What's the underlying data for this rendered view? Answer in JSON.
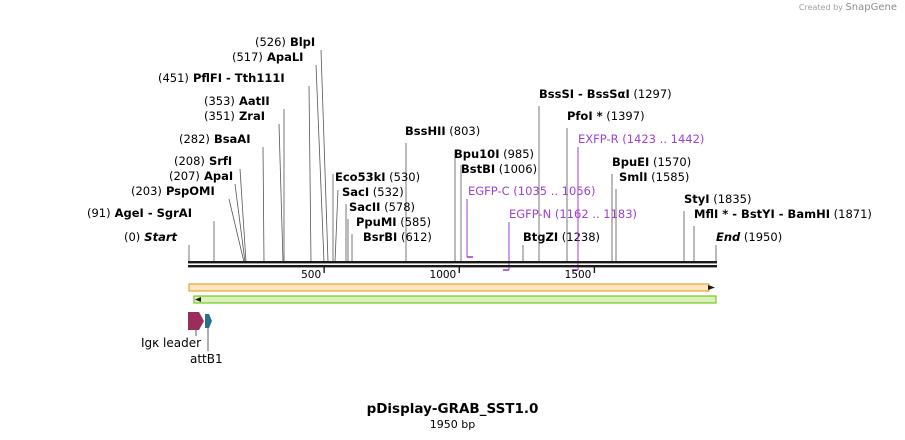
{
  "watermark": {
    "created_by": "Created by",
    "brand": "SnapGene"
  },
  "map": {
    "title": "pDisplay-GRAB_SST1.0",
    "length_label": "1950 bp",
    "length": 1950,
    "ticks": [
      {
        "pos": 500,
        "label": "500"
      },
      {
        "pos": 1000,
        "label": "1000"
      },
      {
        "pos": 1500,
        "label": "1500"
      }
    ]
  },
  "sites": [
    {
      "pos": "(526)",
      "name": "BlpI",
      "coord": 526
    },
    {
      "pos": "(517)",
      "name": "ApaLI",
      "coord": 517
    },
    {
      "pos": "(451)",
      "name": "PflFI",
      "suffix": "Tth111I",
      "coord": 451
    },
    {
      "pos": "(353)",
      "name": "AatII",
      "coord": 353
    },
    {
      "pos": "(351)",
      "name": "ZraI",
      "coord": 351
    },
    {
      "pos": "(282)",
      "name": "BsaAI",
      "coord": 282
    },
    {
      "pos": "(208)",
      "name": "SrfI",
      "coord": 208
    },
    {
      "pos": "(207)",
      "name": "ApaI",
      "coord": 207
    },
    {
      "pos": "(203)",
      "name": "PspOMI",
      "coord": 203
    },
    {
      "pos": "(91)",
      "name": "AgeI",
      "suffix": "SgrAI",
      "coord": 91
    },
    {
      "pos": "(0)",
      "name": "Start",
      "coord": 0
    },
    {
      "name": "BssHII",
      "pos": "(803)",
      "coord": 803
    },
    {
      "name": "Eco53kI",
      "pos": "(530)",
      "coord": 530
    },
    {
      "name": "SacI",
      "pos": "(532)",
      "coord": 532
    },
    {
      "name": "SacII",
      "pos": "(578)",
      "coord": 578
    },
    {
      "name": "PpuMI",
      "pos": "(585)",
      "coord": 585
    },
    {
      "name": "BsrBI",
      "pos": "(612)",
      "coord": 612
    },
    {
      "name": "Bpu10I",
      "pos": "(985)",
      "coord": 985
    },
    {
      "name": "BstBI",
      "pos": "(1006)",
      "coord": 1006
    },
    {
      "name": "BtgZI",
      "pos": "(1238)",
      "coord": 1238
    },
    {
      "name": "BssSI",
      "suffix": "BssSαI",
      "pos": "(1297)",
      "coord": 1297
    },
    {
      "name": "PfoI",
      "star": "*",
      "pos": "(1397)",
      "coord": 1397
    },
    {
      "name": "BpuEI",
      "pos": "(1570)",
      "coord": 1570
    },
    {
      "name": "SmlI",
      "pos": "(1585)",
      "coord": 1585
    },
    {
      "name": "StyI",
      "pos": "(1835)",
      "coord": 1835
    },
    {
      "name": "MflI",
      "star": "*",
      "suffix": "BstYI",
      "suffix2": "BamHI",
      "pos": "(1871)",
      "coord": 1871
    },
    {
      "name": "End",
      "pos": "(1950)",
      "coord": 1950
    }
  ],
  "primers": [
    {
      "name": "EXFP-R",
      "range": "(1423 .. 1442)"
    },
    {
      "name": "EGFP-C",
      "range": "(1035 .. 1056)"
    },
    {
      "name": "EGFP-N",
      "range": "(1162 .. 1183)"
    }
  ],
  "features": [
    {
      "name": "Igκ leader",
      "color": "#9b2d5c"
    },
    {
      "name": "attB1",
      "color": "#2a6e8c"
    }
  ],
  "colors": {
    "primer": "#a040d0",
    "orange_arrow": "#f0a030",
    "green_arrow": "#78c828",
    "backbone": "#1a1a1a"
  }
}
